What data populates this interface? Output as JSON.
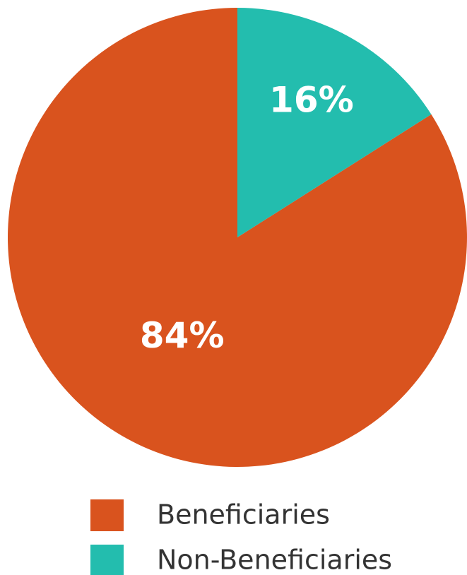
{
  "chart_data": {
    "type": "pie",
    "categories": [
      "Beneficiaries",
      "Non-Beneficiaries"
    ],
    "values": [
      84,
      16
    ],
    "value_labels": [
      "84%",
      "16%"
    ],
    "colors": [
      "#d9531e",
      "#23bdae"
    ],
    "legend": "bottom"
  }
}
